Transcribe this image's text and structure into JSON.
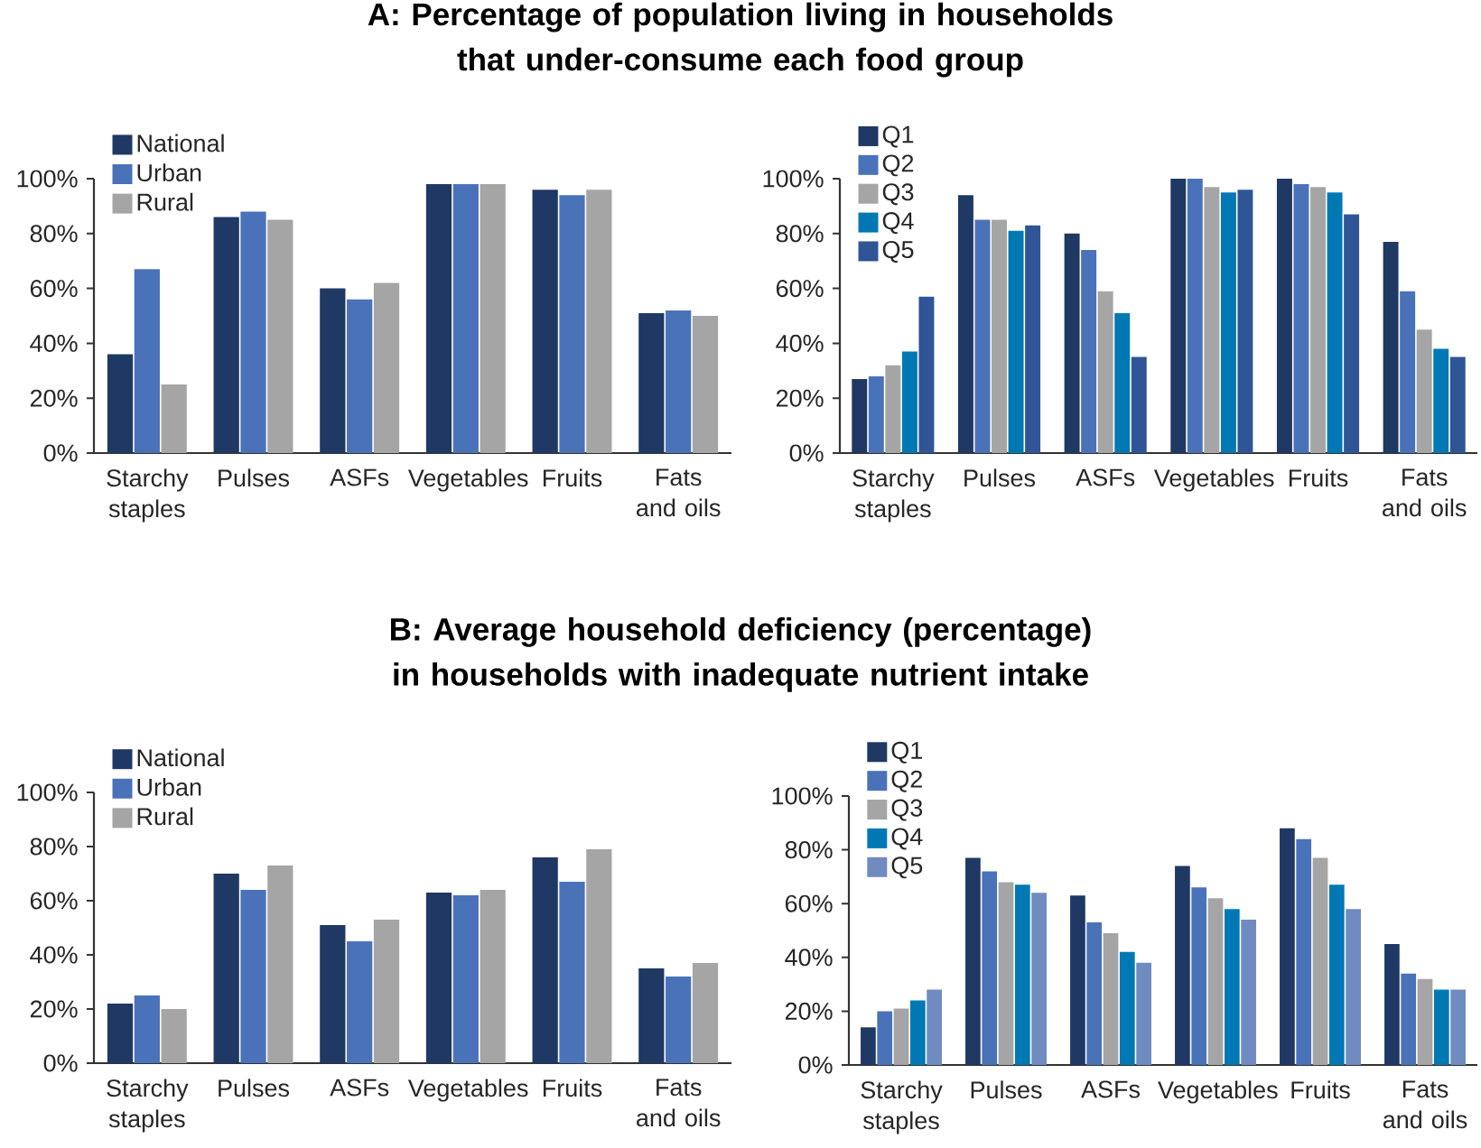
{
  "chart_data": [
    {
      "type": "bar",
      "title": "A: Percentage of population living in households that under-consume each food group",
      "categories": [
        "Starchy staples",
        "Pulses",
        "ASFs",
        "Vegetables",
        "Fruits",
        "Fats and oils"
      ],
      "ylim": [
        0,
        100
      ],
      "yticks": [
        {
          "value": 0,
          "label": "0%"
        },
        {
          "value": 20,
          "label": "20%"
        },
        {
          "value": 40,
          "label": "40%"
        },
        {
          "value": 60,
          "label": "60%"
        },
        {
          "value": 80,
          "label": "80%"
        },
        {
          "value": 100,
          "label": "100%"
        }
      ],
      "legend": "top left",
      "series": [
        {
          "name": "National",
          "color": "#1f3864",
          "values": [
            36,
            86,
            60,
            98,
            96,
            51
          ]
        },
        {
          "name": "Urban",
          "color": "#4a72b8",
          "values": [
            67,
            88,
            56,
            98,
            94,
            52
          ]
        },
        {
          "name": "Rural",
          "color": "#a5a5a5",
          "values": [
            25,
            85,
            62,
            98,
            96,
            50
          ]
        }
      ]
    },
    {
      "type": "bar",
      "categories": [
        "Starchy staples",
        "Pulses",
        "ASFs",
        "Vegetables",
        "Fruits",
        "Fats and oils"
      ],
      "ylim": [
        0,
        100
      ],
      "yticks": [
        {
          "value": 0,
          "label": "0%"
        },
        {
          "value": 20,
          "label": "20%"
        },
        {
          "value": 40,
          "label": "40%"
        },
        {
          "value": 60,
          "label": "60%"
        },
        {
          "value": 80,
          "label": "80%"
        },
        {
          "value": 100,
          "label": "100%"
        }
      ],
      "legend": "top left",
      "series": [
        {
          "name": "Q1",
          "color": "#1f3864",
          "values": [
            27,
            94,
            80,
            100,
            100,
            77
          ]
        },
        {
          "name": "Q2",
          "color": "#4a72b8",
          "values": [
            28,
            85,
            74,
            100,
            98,
            59
          ]
        },
        {
          "name": "Q3",
          "color": "#a5a5a5",
          "values": [
            32,
            85,
            59,
            97,
            97,
            45
          ]
        },
        {
          "name": "Q4",
          "color": "#0078b4",
          "values": [
            37,
            81,
            51,
            95,
            95,
            38
          ]
        },
        {
          "name": "Q5",
          "color": "#2f5597",
          "values": [
            57,
            83,
            35,
            96,
            87,
            35
          ]
        }
      ]
    },
    {
      "type": "bar",
      "title": "B: Average household deficiency (percentage) in households with inadequate nutrient intake",
      "categories": [
        "Starchy staples",
        "Pulses",
        "ASFs",
        "Vegetables",
        "Fruits",
        "Fats and oils"
      ],
      "ylim": [
        0,
        100
      ],
      "yticks": [
        {
          "value": 0,
          "label": "0%"
        },
        {
          "value": 20,
          "label": "20%"
        },
        {
          "value": 40,
          "label": "40%"
        },
        {
          "value": 60,
          "label": "60%"
        },
        {
          "value": 80,
          "label": "80%"
        },
        {
          "value": 100,
          "label": "100%"
        }
      ],
      "legend": "top left",
      "series": [
        {
          "name": "National",
          "color": "#1f3864",
          "values": [
            22,
            70,
            51,
            63,
            76,
            35
          ]
        },
        {
          "name": "Urban",
          "color": "#4a72b8",
          "values": [
            25,
            64,
            45,
            62,
            67,
            32
          ]
        },
        {
          "name": "Rural",
          "color": "#a5a5a5",
          "values": [
            20,
            73,
            53,
            64,
            79,
            37
          ]
        }
      ]
    },
    {
      "type": "bar",
      "categories": [
        "Starchy staples",
        "Pulses",
        "ASFs",
        "Vegetables",
        "Fruits",
        "Fats and oils"
      ],
      "ylim": [
        0,
        100
      ],
      "yticks": [
        {
          "value": 0,
          "label": "0%"
        },
        {
          "value": 20,
          "label": "20%"
        },
        {
          "value": 40,
          "label": "40%"
        },
        {
          "value": 60,
          "label": "60%"
        },
        {
          "value": 80,
          "label": "80%"
        },
        {
          "value": 100,
          "label": "100%"
        }
      ],
      "legend": "top left",
      "series": [
        {
          "name": "Q1",
          "color": "#1f3864",
          "values": [
            14,
            77,
            63,
            74,
            88,
            45
          ]
        },
        {
          "name": "Q2",
          "color": "#4a72b8",
          "values": [
            20,
            72,
            53,
            66,
            84,
            34
          ]
        },
        {
          "name": "Q3",
          "color": "#a5a5a5",
          "values": [
            21,
            68,
            49,
            62,
            77,
            32
          ]
        },
        {
          "name": "Q4",
          "color": "#0078b4",
          "values": [
            24,
            67,
            42,
            58,
            67,
            28
          ]
        },
        {
          "name": "Q5",
          "color": "#6f8bbf",
          "values": [
            28,
            64,
            38,
            54,
            58,
            28
          ]
        }
      ]
    }
  ]
}
